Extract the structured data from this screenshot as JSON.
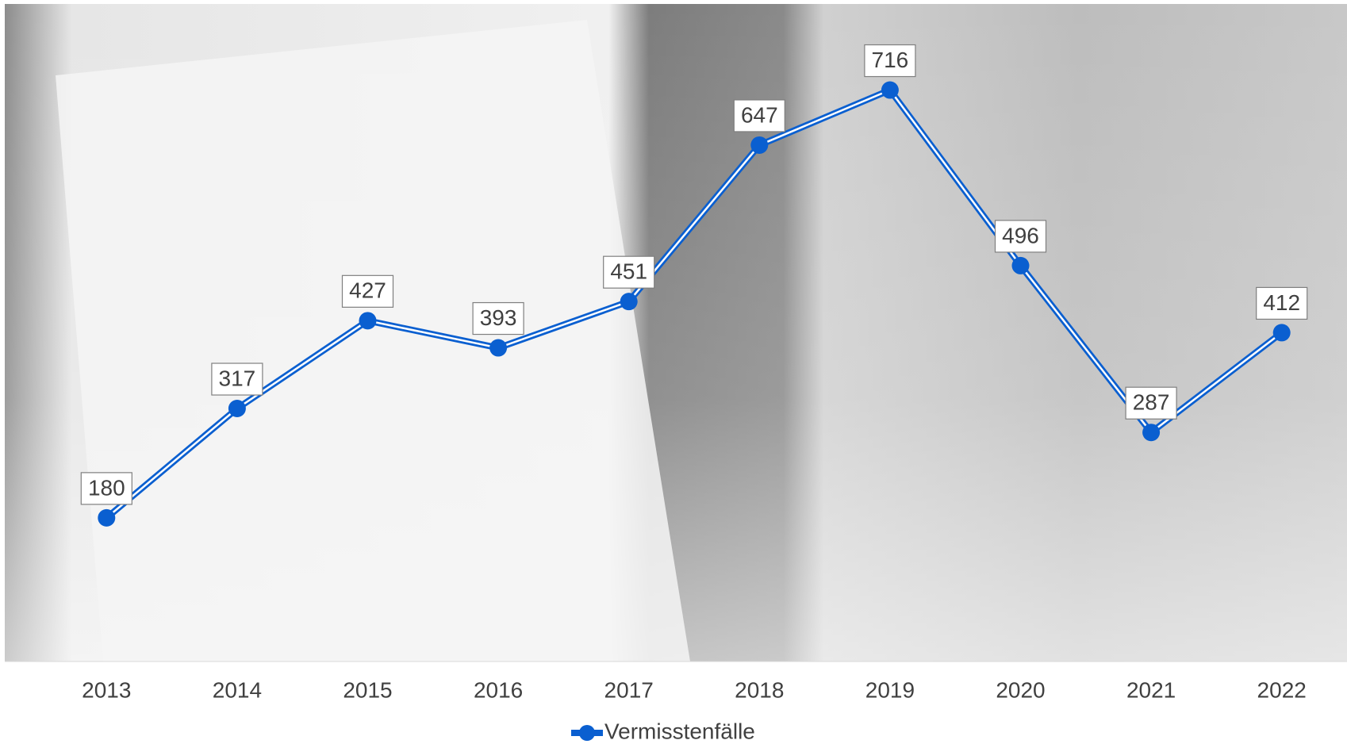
{
  "chart_data": {
    "type": "line",
    "categories": [
      "2013",
      "2014",
      "2015",
      "2016",
      "2017",
      "2018",
      "2019",
      "2020",
      "2021",
      "2022"
    ],
    "series": [
      {
        "name": "Vermisstenfälle",
        "color": "#0a5fd0",
        "values": [
          180,
          317,
          427,
          393,
          451,
          647,
          716,
          496,
          287,
          412
        ]
      }
    ],
    "ylim": [
      0,
      800
    ],
    "grid": false,
    "legend": "bottom",
    "data_labels": true
  }
}
